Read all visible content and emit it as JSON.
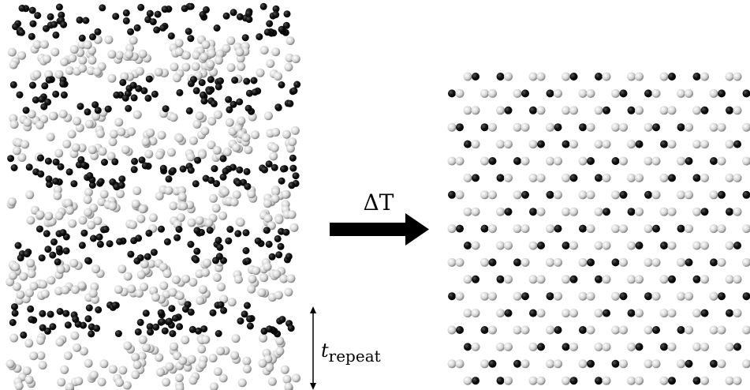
{
  "labels": {
    "arrow": "ΔT",
    "repeat_symbol": "t",
    "repeat_subscript": "repeat"
  }
}
